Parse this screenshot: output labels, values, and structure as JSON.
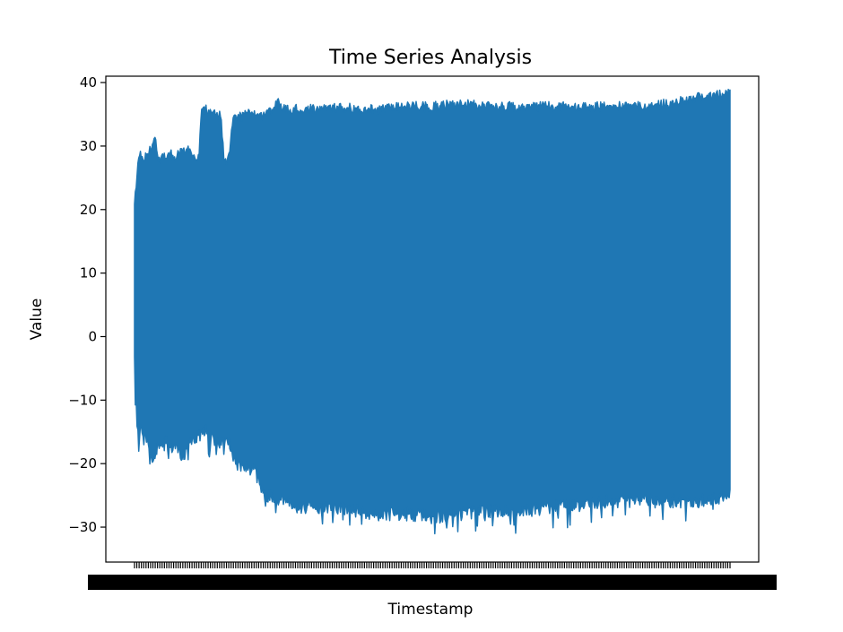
{
  "chart_data": {
    "type": "line",
    "title": "Time Series Analysis",
    "xlabel": "Timestamp",
    "ylabel": "Value",
    "ylim": [
      -35.5,
      41
    ],
    "yticks": [
      -30,
      -20,
      -10,
      0,
      10,
      20,
      30,
      40
    ],
    "ytick_labels": [
      "−30",
      "−20",
      "−10",
      "0",
      "10",
      "20",
      "30",
      "40"
    ],
    "grid": false,
    "legend": "none",
    "x_tick_labels_note": "",
    "series": [
      {
        "color": "#1f77b4",
        "upper_envelope": [
          [
            0.0,
            21
          ],
          [
            0.5,
            27.5
          ],
          [
            1.0,
            29.5
          ],
          [
            2.0,
            29
          ],
          [
            3.0,
            31
          ],
          [
            3.5,
            32.5
          ],
          [
            4.0,
            28.5
          ],
          [
            5.0,
            29
          ],
          [
            6.0,
            29.5
          ],
          [
            7.0,
            29
          ],
          [
            8.0,
            30
          ],
          [
            9.0,
            30.5
          ],
          [
            10.0,
            29.5
          ],
          [
            10.8,
            28.5
          ],
          [
            11.2,
            36
          ],
          [
            12.0,
            36.5
          ],
          [
            13.0,
            36
          ],
          [
            14.0,
            35.5
          ],
          [
            14.5,
            35.8
          ],
          [
            15.0,
            28.5
          ],
          [
            15.5,
            28
          ],
          [
            16.0,
            30.5
          ],
          [
            16.5,
            35.5
          ],
          [
            18.0,
            35.5
          ],
          [
            20.0,
            36
          ],
          [
            22.0,
            35.5
          ],
          [
            23.0,
            36.5
          ],
          [
            24.0,
            38
          ],
          [
            25.0,
            36.5
          ],
          [
            28.0,
            36.8
          ],
          [
            30.0,
            36.5
          ],
          [
            35.0,
            36.8
          ],
          [
            40.0,
            36.5
          ],
          [
            45.0,
            37
          ],
          [
            50.0,
            37
          ],
          [
            55.0,
            37.5
          ],
          [
            60.0,
            37
          ],
          [
            65.0,
            37
          ],
          [
            70.0,
            37
          ],
          [
            75.0,
            37
          ],
          [
            80.0,
            37
          ],
          [
            85.0,
            37
          ],
          [
            90.0,
            37.5
          ],
          [
            95.0,
            38.5
          ],
          [
            100.0,
            39
          ]
        ],
        "lower_envelope": [
          [
            0.0,
            -5
          ],
          [
            0.5,
            -16.5
          ],
          [
            1.0,
            -16
          ],
          [
            2.0,
            -17
          ],
          [
            3.0,
            -20
          ],
          [
            4.0,
            -18.5
          ],
          [
            5.0,
            -17
          ],
          [
            6.0,
            -19
          ],
          [
            7.0,
            -18
          ],
          [
            8.0,
            -20
          ],
          [
            9.0,
            -18.5
          ],
          [
            10.0,
            -17
          ],
          [
            11.0,
            -16.5
          ],
          [
            12.0,
            -16
          ],
          [
            13.0,
            -17
          ],
          [
            14.0,
            -17.5
          ],
          [
            15.0,
            -18
          ],
          [
            16.0,
            -18
          ],
          [
            17.0,
            -21
          ],
          [
            18.0,
            -21.5
          ],
          [
            20.0,
            -22
          ],
          [
            22.0,
            -26
          ],
          [
            25.0,
            -27
          ],
          [
            28.0,
            -28
          ],
          [
            30.0,
            -28
          ],
          [
            35.0,
            -28
          ],
          [
            40.0,
            -29
          ],
          [
            45.0,
            -29
          ],
          [
            50.0,
            -29.5
          ],
          [
            55.0,
            -29
          ],
          [
            60.0,
            -28.5
          ],
          [
            65.0,
            -28.5
          ],
          [
            70.0,
            -28
          ],
          [
            75.0,
            -27.5
          ],
          [
            80.0,
            -27
          ],
          [
            85.0,
            -27
          ],
          [
            90.0,
            -27
          ],
          [
            95.0,
            -27
          ],
          [
            100.0,
            -26
          ]
        ]
      }
    ]
  }
}
